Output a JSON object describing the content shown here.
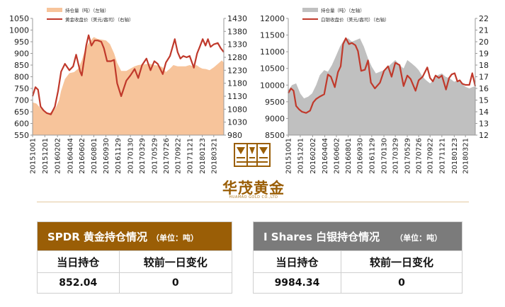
{
  "chart_data": [
    {
      "type": "area",
      "legend": "top-left",
      "grid": false,
      "xlim": [
        "2015-10-01",
        "2018-05-10"
      ],
      "x_ticks": [
        "20151001",
        "20151201",
        "20160202",
        "20160404",
        "20160602",
        "20160801",
        "20160930",
        "20161129",
        "20170130",
        "20170329",
        "20170529",
        "20170726",
        "20170922",
        "20171121",
        "20180123",
        "20180321"
      ],
      "y_left": {
        "ticks": [
          550,
          600,
          650,
          700,
          750,
          800,
          850,
          900,
          950,
          1000,
          1050
        ],
        "lim": [
          550,
          1050
        ]
      },
      "y_right": {
        "ticks": [
          980,
          1030,
          1080,
          1130,
          1180,
          1230,
          1280,
          1330,
          1380,
          1430
        ],
        "lim": [
          980,
          1430
        ]
      },
      "series": [
        {
          "name": "持仓量（吨）（左轴）",
          "kind": "area",
          "axis": "left",
          "color": "#f7c49b",
          "x": [
            "2015-10-01",
            "2015-10-20",
            "2015-11-10",
            "2015-12-01",
            "2015-12-20",
            "2016-01-10",
            "2016-01-25",
            "2016-02-10",
            "2016-02-20",
            "2016-03-10",
            "2016-04-01",
            "2016-04-25",
            "2016-05-15",
            "2016-06-02",
            "2016-06-20",
            "2016-07-10",
            "2016-08-01",
            "2016-08-20",
            "2016-09-15",
            "2016-10-01",
            "2016-10-20",
            "2016-11-10",
            "2016-11-25",
            "2016-12-15",
            "2017-01-10",
            "2017-01-30",
            "2017-02-20",
            "2017-03-10",
            "2017-03-29",
            "2017-04-20",
            "2017-05-10",
            "2017-05-29",
            "2017-06-20",
            "2017-07-10",
            "2017-07-26",
            "2017-08-15",
            "2017-09-01",
            "2017-09-22",
            "2017-10-15",
            "2017-11-01",
            "2017-11-21",
            "2017-12-10",
            "2017-12-25",
            "2018-01-10",
            "2018-01-23",
            "2018-02-10",
            "2018-02-28",
            "2018-03-21",
            "2018-04-10",
            "2018-04-30",
            "2018-05-10"
          ],
          "values": [
            690,
            685,
            665,
            650,
            642,
            655,
            668,
            700,
            740,
            790,
            815,
            820,
            835,
            870,
            920,
            950,
            970,
            962,
            958,
            955,
            940,
            900,
            860,
            825,
            825,
            835,
            845,
            850,
            852,
            855,
            855,
            850,
            848,
            840,
            820,
            835,
            850,
            845,
            845,
            845,
            850,
            845,
            850,
            840,
            835,
            833,
            828,
            840,
            855,
            870,
            860
          ]
        },
        {
          "name": "黄金收盘价（美元/盎司）（右轴）",
          "kind": "line",
          "axis": "right",
          "color": "#c0392b",
          "x": [
            "2015-10-01",
            "2015-10-15",
            "2015-10-28",
            "2015-11-10",
            "2015-11-25",
            "2015-12-10",
            "2015-12-31",
            "2016-01-20",
            "2016-02-05",
            "2016-02-20",
            "2016-03-10",
            "2016-04-01",
            "2016-04-20",
            "2016-05-05",
            "2016-05-25",
            "2016-06-02",
            "2016-06-24",
            "2016-07-06",
            "2016-07-20",
            "2016-08-05",
            "2016-08-20",
            "2016-09-07",
            "2016-09-20",
            "2016-10-06",
            "2016-10-25",
            "2016-11-10",
            "2016-11-25",
            "2016-12-15",
            "2017-01-10",
            "2017-01-30",
            "2017-02-20",
            "2017-03-10",
            "2017-03-29",
            "2017-04-20",
            "2017-05-10",
            "2017-05-29",
            "2017-06-15",
            "2017-07-10",
            "2017-07-26",
            "2017-08-15",
            "2017-09-08",
            "2017-09-22",
            "2017-10-06",
            "2017-10-20",
            "2017-11-06",
            "2017-11-21",
            "2017-12-12",
            "2017-12-28",
            "2018-01-10",
            "2018-01-25",
            "2018-02-08",
            "2018-02-20",
            "2018-03-05",
            "2018-03-21",
            "2018-04-10",
            "2018-04-25",
            "2018-05-10"
          ],
          "values": [
            1130,
            1165,
            1155,
            1090,
            1075,
            1065,
            1060,
            1090,
            1150,
            1225,
            1255,
            1230,
            1245,
            1290,
            1225,
            1210,
            1325,
            1365,
            1325,
            1345,
            1345,
            1340,
            1315,
            1265,
            1265,
            1270,
            1180,
            1130,
            1190,
            1210,
            1235,
            1200,
            1250,
            1275,
            1230,
            1265,
            1255,
            1215,
            1260,
            1285,
            1350,
            1300,
            1275,
            1285,
            1280,
            1285,
            1240,
            1295,
            1320,
            1350,
            1325,
            1350,
            1320,
            1330,
            1335,
            1315,
            1300
          ]
        }
      ]
    },
    {
      "type": "area",
      "legend": "top-left",
      "grid": false,
      "xlim": [
        "2015-10-01",
        "2018-05-10"
      ],
      "x_ticks": [
        "20151001",
        "20151201",
        "20160202",
        "20160404",
        "20160602",
        "20160801",
        "20160930",
        "20161129",
        "20170130",
        "20170329",
        "20170529",
        "20170726",
        "20170922",
        "20171121",
        "20180123",
        "20180321"
      ],
      "y_left": {
        "ticks": [
          8500,
          9000,
          9500,
          10000,
          10500,
          11000,
          11500,
          12000
        ],
        "lim": [
          8500,
          12000
        ]
      },
      "y_right": {
        "ticks": [
          12,
          13,
          14,
          15,
          16,
          17,
          18,
          19,
          20,
          21,
          22
        ],
        "lim": [
          12,
          22
        ]
      },
      "series": [
        {
          "name": "持仓量（吨）（左轴）",
          "kind": "area",
          "axis": "left",
          "color": "#c0c0c0",
          "x": [
            "2015-10-01",
            "2015-10-20",
            "2015-11-10",
            "2015-12-01",
            "2015-12-20",
            "2016-01-10",
            "2016-01-30",
            "2016-02-20",
            "2016-03-10",
            "2016-04-01",
            "2016-04-20",
            "2016-05-10",
            "2016-06-02",
            "2016-06-20",
            "2016-07-10",
            "2016-08-01",
            "2016-08-20",
            "2016-09-10",
            "2016-09-30",
            "2016-10-20",
            "2016-11-10",
            "2016-11-29",
            "2016-12-20",
            "2017-01-10",
            "2017-01-30",
            "2017-02-20",
            "2017-03-10",
            "2017-03-29",
            "2017-04-20",
            "2017-05-10",
            "2017-05-29",
            "2017-06-20",
            "2017-07-10",
            "2017-07-26",
            "2017-08-15",
            "2017-09-01",
            "2017-09-22",
            "2017-10-10",
            "2017-11-01",
            "2017-11-21",
            "2017-12-10",
            "2018-01-01",
            "2018-01-23",
            "2018-02-10",
            "2018-03-01",
            "2018-03-21",
            "2018-04-10",
            "2018-04-30",
            "2018-05-10"
          ],
          "values": [
            9850,
            10000,
            10050,
            9750,
            9600,
            9650,
            9750,
            10000,
            10300,
            10450,
            10400,
            10600,
            10900,
            11150,
            11350,
            11400,
            11300,
            11350,
            11400,
            11150,
            10800,
            10550,
            10350,
            10400,
            10450,
            10550,
            10650,
            10750,
            10600,
            10500,
            10750,
            10650,
            10550,
            10450,
            10250,
            10150,
            10050,
            10150,
            10300,
            10350,
            10250,
            10200,
            10100,
            10150,
            10050,
            9950,
            9900,
            9950,
            9950
          ]
        },
        {
          "name": "白银收盘价（美元/盎司）（右轴）",
          "kind": "line",
          "axis": "right",
          "color": "#c0392b",
          "x": [
            "2015-10-01",
            "2015-10-15",
            "2015-10-28",
            "2015-11-10",
            "2015-11-25",
            "2015-12-10",
            "2015-12-31",
            "2016-01-20",
            "2016-02-05",
            "2016-02-20",
            "2016-03-10",
            "2016-04-01",
            "2016-04-20",
            "2016-05-05",
            "2016-05-25",
            "2016-06-10",
            "2016-06-24",
            "2016-07-06",
            "2016-07-20",
            "2016-08-05",
            "2016-08-20",
            "2016-09-07",
            "2016-09-20",
            "2016-10-06",
            "2016-10-25",
            "2016-11-10",
            "2016-11-25",
            "2016-12-15",
            "2017-01-10",
            "2017-01-30",
            "2017-02-20",
            "2017-03-10",
            "2017-03-29",
            "2017-04-20",
            "2017-05-10",
            "2017-05-29",
            "2017-06-15",
            "2017-07-10",
            "2017-07-26",
            "2017-08-15",
            "2017-09-08",
            "2017-09-22",
            "2017-10-06",
            "2017-10-20",
            "2017-11-06",
            "2017-11-21",
            "2017-12-12",
            "2017-12-28",
            "2018-01-10",
            "2018-01-25",
            "2018-02-08",
            "2018-02-20",
            "2018-03-05",
            "2018-03-21",
            "2018-04-10",
            "2018-04-25",
            "2018-05-10"
          ],
          "values": [
            15.6,
            16.0,
            15.8,
            14.5,
            14.2,
            14.0,
            13.9,
            14.1,
            14.8,
            15.1,
            15.3,
            15.5,
            17.2,
            17.0,
            16.1,
            17.4,
            17.9,
            19.8,
            20.3,
            19.8,
            19.9,
            19.7,
            19.2,
            17.5,
            17.6,
            18.4,
            16.5,
            16.0,
            16.5,
            17.5,
            17.9,
            17.0,
            18.2,
            18.0,
            16.2,
            17.1,
            16.8,
            15.8,
            16.7,
            17.0,
            17.8,
            16.9,
            16.6,
            17.1,
            16.9,
            17.1,
            15.9,
            16.9,
            17.2,
            17.3,
            16.6,
            16.7,
            16.4,
            16.3,
            16.3,
            17.3,
            16.2
          ]
        }
      ]
    }
  ],
  "tables": {
    "gold": {
      "title": "SPDR 黄金持仓情况",
      "unit": "（单位：吨）",
      "col1": "当日持仓",
      "col2": "较前一日变化",
      "holding": "852.04",
      "change": "0"
    },
    "silver": {
      "title": "I Shares 白银持仓情况",
      "unit": "（单位：吨）",
      "col1": "当日持仓",
      "col2": "较前一日变化",
      "holding": "9984.34",
      "change": "0"
    }
  },
  "logo": {
    "name": "华茂黄金",
    "sub": "HUAMAO GOLD CO.,LTD",
    "color": "#9a5e06"
  }
}
